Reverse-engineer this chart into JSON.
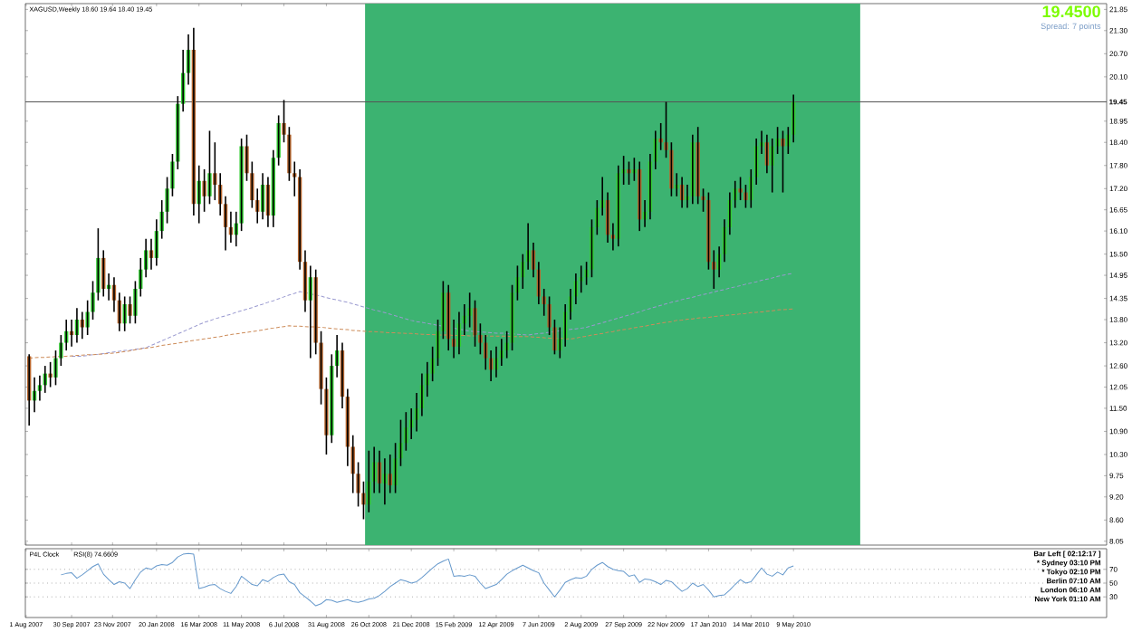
{
  "chart_data": [
    {
      "type": "candlestick",
      "title": "XAGUSD,Weekly  18.60 19.64 18.40 19.45",
      "x": [
        "2007-08-05",
        "2007-08-12",
        "2007-08-19",
        "2007-08-26",
        "2007-09-02",
        "2007-09-09",
        "2007-09-16",
        "2007-09-23",
        "2007-09-30",
        "2007-10-07",
        "2007-10-14",
        "2007-10-21",
        "2007-10-28",
        "2007-11-04",
        "2007-11-11",
        "2007-11-18",
        "2007-11-25",
        "2007-12-02",
        "2007-12-09",
        "2007-12-16",
        "2007-12-23",
        "2007-12-30",
        "2008-01-06",
        "2008-01-13",
        "2008-01-20",
        "2008-01-27",
        "2008-02-03",
        "2008-02-10",
        "2008-02-17",
        "2008-02-24",
        "2008-03-02",
        "2008-03-09",
        "2008-03-16",
        "2008-03-23",
        "2008-03-30",
        "2008-04-06",
        "2008-04-13",
        "2008-04-20",
        "2008-04-27",
        "2008-05-04",
        "2008-05-11",
        "2008-05-18",
        "2008-05-25",
        "2008-06-01",
        "2008-06-08",
        "2008-06-15",
        "2008-06-22",
        "2008-06-29",
        "2008-07-06",
        "2008-07-13",
        "2008-07-20",
        "2008-07-27",
        "2008-08-03",
        "2008-08-10",
        "2008-08-17",
        "2008-08-24",
        "2008-08-31",
        "2008-09-07",
        "2008-09-14",
        "2008-09-21",
        "2008-09-28",
        "2008-10-05",
        "2008-10-12",
        "2008-10-19",
        "2008-10-26",
        "2008-11-02",
        "2008-11-09",
        "2008-11-16",
        "2008-11-23",
        "2008-11-30",
        "2008-12-07",
        "2008-12-14",
        "2008-12-21",
        "2008-12-28",
        "2009-01-04",
        "2009-01-11",
        "2009-01-18",
        "2009-01-25",
        "2009-02-01",
        "2009-02-08",
        "2009-02-15",
        "2009-02-22",
        "2009-03-01",
        "2009-03-08",
        "2009-03-15",
        "2009-03-22",
        "2009-03-29",
        "2009-04-05",
        "2009-04-12",
        "2009-04-19",
        "2009-04-26",
        "2009-05-03",
        "2009-05-10",
        "2009-05-17",
        "2009-05-24",
        "2009-05-31",
        "2009-06-07",
        "2009-06-14",
        "2009-06-21",
        "2009-06-28",
        "2009-07-05",
        "2009-07-12",
        "2009-07-19",
        "2009-07-26",
        "2009-08-02",
        "2009-08-09",
        "2009-08-16",
        "2009-08-23",
        "2009-08-30",
        "2009-09-06",
        "2009-09-13",
        "2009-09-20",
        "2009-09-27",
        "2009-10-04",
        "2009-10-11",
        "2009-10-18",
        "2009-10-25",
        "2009-11-01",
        "2009-11-08",
        "2009-11-15",
        "2009-11-22",
        "2009-11-29",
        "2009-12-06",
        "2009-12-13",
        "2009-12-20",
        "2009-12-27",
        "2010-01-03",
        "2010-01-10",
        "2010-01-17",
        "2010-01-24",
        "2010-01-31",
        "2010-02-07",
        "2010-02-14",
        "2010-02-21",
        "2010-02-28",
        "2010-03-07",
        "2010-03-14",
        "2010-03-21",
        "2010-03-28",
        "2010-04-04",
        "2010-04-11",
        "2010-04-18",
        "2010-04-25",
        "2010-05-02",
        "2010-05-09"
      ],
      "ohlc": [
        [
          12.85,
          12.9,
          11.05,
          11.7
        ],
        [
          11.7,
          12.3,
          11.4,
          11.95
        ],
        [
          11.95,
          12.35,
          11.7,
          12.1
        ],
        [
          12.1,
          12.6,
          11.9,
          12.4
        ],
        [
          12.4,
          12.7,
          12.05,
          12.3
        ],
        [
          12.3,
          13.0,
          12.1,
          12.8
        ],
        [
          12.8,
          13.4,
          12.6,
          13.2
        ],
        [
          13.2,
          13.8,
          13.0,
          13.5
        ],
        [
          13.5,
          13.8,
          13.1,
          13.4
        ],
        [
          13.4,
          14.1,
          13.2,
          13.8
        ],
        [
          13.8,
          14.0,
          13.3,
          13.6
        ],
        [
          13.6,
          14.3,
          13.4,
          14.0
        ],
        [
          14.0,
          14.8,
          13.8,
          14.5
        ],
        [
          14.5,
          16.17,
          14.3,
          15.4
        ],
        [
          15.4,
          15.6,
          14.4,
          14.6
        ],
        [
          14.6,
          15.0,
          14.3,
          14.7
        ],
        [
          14.7,
          14.9,
          14.0,
          14.3
        ],
        [
          14.3,
          14.5,
          13.5,
          13.7
        ],
        [
          13.7,
          14.4,
          13.5,
          14.2
        ],
        [
          14.2,
          14.4,
          13.7,
          13.9
        ],
        [
          13.9,
          14.8,
          13.7,
          14.6
        ],
        [
          14.6,
          15.4,
          14.4,
          15.1
        ],
        [
          15.1,
          15.9,
          14.9,
          15.6
        ],
        [
          15.6,
          15.9,
          15.1,
          15.4
        ],
        [
          15.4,
          16.4,
          15.2,
          16.1
        ],
        [
          16.1,
          16.9,
          15.9,
          16.6
        ],
        [
          16.6,
          17.5,
          16.3,
          17.2
        ],
        [
          17.2,
          18.1,
          17.0,
          17.9
        ],
        [
          17.9,
          19.6,
          17.7,
          19.4
        ],
        [
          19.4,
          20.8,
          19.2,
          20.2
        ],
        [
          20.2,
          21.2,
          19.9,
          20.8
        ],
        [
          20.8,
          21.37,
          16.5,
          16.8
        ],
        [
          16.8,
          17.8,
          16.3,
          17.4
        ],
        [
          17.4,
          17.7,
          16.6,
          17.0
        ],
        [
          17.0,
          18.7,
          16.8,
          17.6
        ],
        [
          17.6,
          18.4,
          16.9,
          17.3
        ],
        [
          17.3,
          17.6,
          16.5,
          16.8
        ],
        [
          16.8,
          17.0,
          15.6,
          16.2
        ],
        [
          16.2,
          16.6,
          15.8,
          16.0
        ],
        [
          16.0,
          16.6,
          15.7,
          16.3
        ],
        [
          16.3,
          18.5,
          16.1,
          18.3
        ],
        [
          18.3,
          18.6,
          17.4,
          17.6
        ],
        [
          17.6,
          17.9,
          16.7,
          16.9
        ],
        [
          16.9,
          17.2,
          16.3,
          16.6
        ],
        [
          16.6,
          17.6,
          16.4,
          17.3
        ],
        [
          17.3,
          17.5,
          16.2,
          16.5
        ],
        [
          16.5,
          18.2,
          16.2,
          18.0
        ],
        [
          18.0,
          19.1,
          17.8,
          18.9
        ],
        [
          18.9,
          19.5,
          18.4,
          18.6
        ],
        [
          18.6,
          18.8,
          17.4,
          17.6
        ],
        [
          17.6,
          17.9,
          17.0,
          17.5
        ],
        [
          17.5,
          17.7,
          15.1,
          15.3
        ],
        [
          15.3,
          15.6,
          14.0,
          14.3
        ],
        [
          14.3,
          15.2,
          12.8,
          14.9
        ],
        [
          14.9,
          15.1,
          12.9,
          13.2
        ],
        [
          13.2,
          13.5,
          11.6,
          12.0
        ],
        [
          12.0,
          12.3,
          10.3,
          10.8
        ],
        [
          10.8,
          12.9,
          10.6,
          12.6
        ],
        [
          12.6,
          13.4,
          12.3,
          13.0
        ],
        [
          13.0,
          13.2,
          11.5,
          11.8
        ],
        [
          11.8,
          12.0,
          10.0,
          10.5
        ],
        [
          10.5,
          10.8,
          9.3,
          9.8
        ],
        [
          9.8,
          10.1,
          8.95,
          9.3
        ],
        [
          9.3,
          9.6,
          8.62,
          9.0
        ],
        [
          9.0,
          10.4,
          8.8,
          9.6
        ],
        [
          9.6,
          10.5,
          9.3,
          10.1
        ],
        [
          10.1,
          10.4,
          9.3,
          9.55
        ],
        [
          9.55,
          10.2,
          9.0,
          9.8
        ],
        [
          9.8,
          10.3,
          9.3,
          9.5
        ],
        [
          9.5,
          10.6,
          9.3,
          10.2
        ],
        [
          10.2,
          11.2,
          10.0,
          10.6
        ],
        [
          10.6,
          11.4,
          10.4,
          11.0
        ],
        [
          11.0,
          11.5,
          10.7,
          11.2
        ],
        [
          11.2,
          11.9,
          10.9,
          11.5
        ],
        [
          11.5,
          12.4,
          11.3,
          12.1
        ],
        [
          12.1,
          12.7,
          11.8,
          12.4
        ],
        [
          12.4,
          13.1,
          12.2,
          12.8
        ],
        [
          12.8,
          13.8,
          12.6,
          13.5
        ],
        [
          13.5,
          14.8,
          13.3,
          14.5
        ],
        [
          14.5,
          14.7,
          13.0,
          13.3
        ],
        [
          13.3,
          13.8,
          12.8,
          13.1
        ],
        [
          13.1,
          14.0,
          12.9,
          13.7
        ],
        [
          13.7,
          14.2,
          13.4,
          13.9
        ],
        [
          13.9,
          14.5,
          13.6,
          14.1
        ],
        [
          14.1,
          14.3,
          13.1,
          13.4
        ],
        [
          13.4,
          13.7,
          12.9,
          13.2
        ],
        [
          13.2,
          13.4,
          12.5,
          12.8
        ],
        [
          12.8,
          13.0,
          12.2,
          12.5
        ],
        [
          12.5,
          13.1,
          12.3,
          12.8
        ],
        [
          12.8,
          13.3,
          12.6,
          13.0
        ],
        [
          13.0,
          13.5,
          12.8,
          13.2
        ],
        [
          13.2,
          14.7,
          13.0,
          14.5
        ],
        [
          14.5,
          15.2,
          14.3,
          14.9
        ],
        [
          14.9,
          15.5,
          14.6,
          15.3
        ],
        [
          15.3,
          16.3,
          15.1,
          15.6
        ],
        [
          15.6,
          15.8,
          14.9,
          15.1
        ],
        [
          15.1,
          15.3,
          14.2,
          14.4
        ],
        [
          14.4,
          14.6,
          13.9,
          14.2
        ],
        [
          14.2,
          14.4,
          13.4,
          13.6
        ],
        [
          13.6,
          13.8,
          12.9,
          13.0
        ],
        [
          13.0,
          13.6,
          12.8,
          13.3
        ],
        [
          13.3,
          14.2,
          13.1,
          14.0
        ],
        [
          14.0,
          14.6,
          13.8,
          14.4
        ],
        [
          14.4,
          15.0,
          14.2,
          14.8
        ],
        [
          14.8,
          15.2,
          14.5,
          14.9
        ],
        [
          14.9,
          15.3,
          14.7,
          15.1
        ],
        [
          15.1,
          16.4,
          14.9,
          16.2
        ],
        [
          16.2,
          16.9,
          16.0,
          16.7
        ],
        [
          16.7,
          17.5,
          16.5,
          16.9
        ],
        [
          16.9,
          17.1,
          15.8,
          16.0
        ],
        [
          16.0,
          16.3,
          15.6,
          15.9
        ],
        [
          15.9,
          17.8,
          15.7,
          17.6
        ],
        [
          17.6,
          18.05,
          17.3,
          17.7
        ],
        [
          17.7,
          17.9,
          17.3,
          17.6
        ],
        [
          17.6,
          18.0,
          17.4,
          17.7
        ],
        [
          17.7,
          17.9,
          16.1,
          16.4
        ],
        [
          16.4,
          16.9,
          16.2,
          16.6
        ],
        [
          16.6,
          18.1,
          16.4,
          17.9
        ],
        [
          17.9,
          18.7,
          17.7,
          18.5
        ],
        [
          18.5,
          18.9,
          18.2,
          18.4
        ],
        [
          18.4,
          19.45,
          18.0,
          18.2
        ],
        [
          18.2,
          18.4,
          17.0,
          17.2
        ],
        [
          17.2,
          17.6,
          17.0,
          17.3
        ],
        [
          17.3,
          17.5,
          16.7,
          16.9
        ],
        [
          16.9,
          17.3,
          16.7,
          17.0
        ],
        [
          17.0,
          18.6,
          16.8,
          18.4
        ],
        [
          18.4,
          18.8,
          16.8,
          17.0
        ],
        [
          17.0,
          17.2,
          16.6,
          16.9
        ],
        [
          16.9,
          17.1,
          15.1,
          15.3
        ],
        [
          15.3,
          15.6,
          14.6,
          15.1
        ],
        [
          15.1,
          15.7,
          14.9,
          15.5
        ],
        [
          15.5,
          16.4,
          15.3,
          16.2
        ],
        [
          16.2,
          17.1,
          16.0,
          16.9
        ],
        [
          16.9,
          17.4,
          16.7,
          17.2
        ],
        [
          17.2,
          17.5,
          16.9,
          17.1
        ],
        [
          17.1,
          17.3,
          16.7,
          16.9
        ],
        [
          16.9,
          17.7,
          16.7,
          17.5
        ],
        [
          17.5,
          18.5,
          17.3,
          18.3
        ],
        [
          18.3,
          18.7,
          18.1,
          18.4
        ],
        [
          18.4,
          18.6,
          17.6,
          17.8
        ],
        [
          17.8,
          18.5,
          17.1,
          18.3
        ],
        [
          18.3,
          18.8,
          18.1,
          18.5
        ],
        [
          18.5,
          18.7,
          17.1,
          18.3
        ],
        [
          18.3,
          18.8,
          18.1,
          18.6
        ],
        [
          18.6,
          19.64,
          18.4,
          19.45
        ]
      ],
      "colors": [
        "#b5652d",
        "#32cd32",
        "#32cd32",
        "#32cd32",
        "#b5652d",
        "#32cd32",
        "#32cd32",
        "#32cd32",
        "#b5652d",
        "#32cd32",
        "#b5652d",
        "#32cd32",
        "#32cd32",
        "#32cd32",
        "#b5652d",
        "#32cd32",
        "#b5652d",
        "#b5652d",
        "#32cd32",
        "#b5652d",
        "#32cd32",
        "#32cd32",
        "#32cd32",
        "#b5652d",
        "#32cd32",
        "#32cd32",
        "#32cd32",
        "#32cd32",
        "#32cd32",
        "#32cd32",
        "#32cd32",
        "#b5652d",
        "#32cd32",
        "#b5652d",
        "#32cd32",
        "#b5652d",
        "#b5652d",
        "#b5652d",
        "#b5652d",
        "#32cd32",
        "#32cd32",
        "#b5652d",
        "#b5652d",
        "#b5652d",
        "#32cd32",
        "#b5652d",
        "#32cd32",
        "#32cd32",
        "#b5652d",
        "#b5652d",
        "#b5652d",
        "#b5652d",
        "#b5652d",
        "#32cd32",
        "#b5652d",
        "#b5652d",
        "#b5652d",
        "#32cd32",
        "#32cd32",
        "#b5652d",
        "#b5652d",
        "#b5652d",
        "#b5652d",
        "#b5652d",
        "#32cd32",
        "#32cd32",
        "#b5652d",
        "#32cd32",
        "#b5652d",
        "#32cd32",
        "#32cd32",
        "#32cd32",
        "#32cd32",
        "#32cd32",
        "#32cd32",
        "#32cd32",
        "#32cd32",
        "#32cd32",
        "#32cd32",
        "#b5652d",
        "#b5652d",
        "#32cd32",
        "#32cd32",
        "#32cd32",
        "#b5652d",
        "#b5652d",
        "#b5652d",
        "#b5652d",
        "#32cd32",
        "#32cd32",
        "#32cd32",
        "#32cd32",
        "#32cd32",
        "#32cd32",
        "#32cd32",
        "#b5652d",
        "#b5652d",
        "#b5652d",
        "#b5652d",
        "#b5652d",
        "#32cd32",
        "#32cd32",
        "#32cd32",
        "#32cd32",
        "#32cd32",
        "#32cd32",
        "#32cd32",
        "#32cd32",
        "#32cd32",
        "#b5652d",
        "#b5652d",
        "#32cd32",
        "#32cd32",
        "#b5652d",
        "#32cd32",
        "#b5652d",
        "#32cd32",
        "#32cd32",
        "#32cd32",
        "#b5652d",
        "#b5652d",
        "#b5652d",
        "#32cd32",
        "#b5652d",
        "#32cd32",
        "#32cd32",
        "#b5652d",
        "#b5652d",
        "#b5652d",
        "#b5652d",
        "#32cd32",
        "#32cd32",
        "#32cd32",
        "#32cd32",
        "#b5652d",
        "#b5652d",
        "#32cd32",
        "#32cd32",
        "#32cd32",
        "#b5652d",
        "#32cd32",
        "#32cd32",
        "#b5652d",
        "#32cd32",
        "#32cd32"
      ],
      "series": [
        {
          "type": "line",
          "color": "#9a9ad0",
          "line_style": "dashed",
          "values": [
            null,
            null,
            null,
            null,
            null,
            null,
            null,
            null,
            12.85,
            12.85,
            12.85,
            12.87,
            12.89,
            12.9,
            12.92,
            12.94,
            12.96,
            12.98,
            13.0,
            13.01,
            13.03,
            13.05,
            13.07,
            13.13,
            13.19,
            13.25,
            13.31,
            13.37,
            13.43,
            13.49,
            13.55,
            13.61,
            13.67,
            13.73,
            13.77,
            13.82,
            13.86,
            13.9,
            13.94,
            13.99,
            14.03,
            14.07,
            14.11,
            14.16,
            14.2,
            14.25,
            14.29,
            14.34,
            14.39,
            14.44,
            14.48,
            14.53,
            14.5,
            14.47,
            14.44,
            14.41,
            14.37,
            14.34,
            14.31,
            14.28,
            14.25,
            14.21,
            14.17,
            14.13,
            14.09,
            14.05,
            14.02,
            13.98,
            13.94,
            13.9,
            13.86,
            13.82,
            13.78,
            13.75,
            13.73,
            13.7,
            13.68,
            13.65,
            13.63,
            null,
            13.58,
            13.55,
            13.53,
            13.5,
            13.49,
            13.48,
            13.47,
            13.46,
            13.45,
            13.45,
            13.44,
            13.43,
            13.42,
            13.41,
            13.4,
            13.42,
            13.44,
            13.45,
            13.47,
            13.49,
            13.51,
            13.53,
            13.55,
            13.56,
            13.58,
            13.6,
            13.64,
            13.68,
            13.72,
            13.76,
            13.8,
            13.84,
            13.88,
            13.92,
            13.96,
            14.0,
            14.05,
            14.09,
            14.13,
            14.17,
            14.21,
            14.25,
            14.28,
            14.32,
            14.35,
            14.38,
            14.42,
            14.45,
            14.48,
            14.52,
            14.55,
            14.58,
            14.62,
            14.65,
            14.68,
            14.72,
            14.75,
            14.78,
            14.82,
            14.85,
            14.88,
            14.92,
            14.95,
            14.98,
            15.0
          ]
        },
        {
          "type": "line",
          "color": "#cd8c5a",
          "line_style": "dashed",
          "values": [
            12.8,
            12.81,
            12.82,
            12.82,
            12.83,
            12.84,
            12.85,
            12.85,
            12.86,
            12.87,
            12.88,
            12.89,
            12.89,
            12.9,
            12.91,
            12.92,
            12.93,
            12.95,
            12.97,
            12.99,
            13.02,
            13.04,
            13.06,
            13.08,
            13.1,
            13.13,
            13.15,
            13.17,
            13.19,
            13.21,
            13.24,
            13.26,
            13.28,
            13.3,
            13.32,
            13.34,
            13.36,
            13.39,
            13.41,
            13.43,
            13.45,
            13.47,
            13.49,
            13.51,
            13.53,
            13.56,
            13.58,
            13.6,
            13.62,
            13.64,
            13.63,
            13.63,
            13.62,
            13.61,
            13.61,
            13.6,
            13.59,
            13.57,
            13.56,
            13.55,
            13.54,
            13.52,
            13.51,
            13.5,
            13.49,
            13.49,
            13.48,
            13.47,
            13.46,
            13.46,
            13.45,
            13.44,
            13.44,
            13.43,
            13.42,
            13.41,
            13.41,
            13.4,
            13.4,
            13.4,
            13.39,
            13.39,
            13.39,
            13.38,
            13.38,
            13.38,
            13.38,
            13.37,
            13.37,
            13.37,
            13.37,
            13.36,
            13.36,
            13.36,
            13.36,
            13.35,
            13.34,
            13.33,
            13.32,
            13.32,
            13.31,
            13.3,
            13.3,
            13.32,
            13.35,
            13.37,
            13.4,
            13.42,
            13.44,
            13.47,
            13.49,
            13.52,
            13.54,
            13.56,
            13.59,
            13.61,
            13.63,
            13.66,
            13.68,
            13.71,
            13.73,
            13.75,
            13.78,
            13.79,
            13.81,
            13.82,
            13.84,
            13.85,
            13.86,
            13.88,
            13.89,
            13.91,
            13.92,
            13.93,
            13.95,
            13.96,
            13.98,
            13.99,
            14.0,
            14.02,
            14.03,
            14.05,
            14.06,
            14.07,
            14.08
          ]
        }
      ],
      "xlim": [
        "2007-07-31",
        "2011-06-26"
      ],
      "ylim": [
        7.95,
        22.0
      ],
      "xticks": [
        {
          "value": "2007-08-01",
          "label": null
        },
        {
          "value": "2007-09-30",
          "label": null
        },
        {
          "value": "2007-11-23",
          "label": null
        },
        {
          "value": "2008-01-20",
          "label": null
        },
        {
          "value": "2008-03-16",
          "label": null
        },
        {
          "value": "2008-05-11",
          "label": null
        },
        {
          "value": "2008-07-06",
          "label": null
        },
        {
          "value": "2008-08-31",
          "label": null
        },
        {
          "value": "2008-10-26",
          "label": null
        },
        {
          "value": "2008-12-21",
          "label": null
        },
        {
          "value": "2009-02-15",
          "label": null
        },
        {
          "value": "2009-04-12",
          "label": null
        },
        {
          "value": "2009-06-07",
          "label": null
        },
        {
          "value": "2009-08-02",
          "label": null
        },
        {
          "value": "2009-09-27",
          "label": null
        },
        {
          "value": "2009-11-22",
          "label": null
        },
        {
          "value": "2010-01-17",
          "label": null
        },
        {
          "value": "2010-03-14",
          "label": null
        },
        {
          "value": "2010-05-09",
          "label": null
        }
      ],
      "yticks": [
        {
          "value": 8.05,
          "label": "8.05"
        },
        {
          "value": 8.6,
          "label": "8.60"
        },
        {
          "value": 9.2,
          "label": "9.20"
        },
        {
          "value": 9.75,
          "label": "9.75"
        },
        {
          "value": 10.3,
          "label": "10.30"
        },
        {
          "value": 10.9,
          "label": "10.90"
        },
        {
          "value": 11.5,
          "label": "11.50"
        },
        {
          "value": 12.05,
          "label": "12.05"
        },
        {
          "value": 12.6,
          "label": "12.60"
        },
        {
          "value": 13.2,
          "label": "13.20"
        },
        {
          "value": 13.8,
          "label": "13.80"
        },
        {
          "value": 14.35,
          "label": "14.35"
        },
        {
          "value": 14.95,
          "label": "14.95"
        },
        {
          "value": 15.5,
          "label": "15.50"
        },
        {
          "value": 16.1,
          "label": "16.10"
        },
        {
          "value": 16.65,
          "label": "16.65"
        },
        {
          "value": 17.2,
          "label": "17.20"
        },
        {
          "value": 17.8,
          "label": "17.80"
        },
        {
          "value": 18.4,
          "label": "18.40"
        },
        {
          "value": 18.95,
          "label": "18.95"
        },
        {
          "value": 20.1,
          "label": "20.10"
        },
        {
          "value": 20.7,
          "label": "20.70"
        },
        {
          "value": 21.3,
          "label": "21.30"
        },
        {
          "value": 21.85,
          "label": "21.85"
        }
      ],
      "tick_labels": "y",
      "ref_lines": [
        {
          "axis": "y",
          "value": 19.45,
          "label": "19.45",
          "color": "#555555"
        }
      ],
      "bands": [
        {
          "axis": "x",
          "from": "2008-10-21",
          "to": "2010-08-05",
          "color": "#3cb371"
        }
      ],
      "annotations": [
        "19.4500",
        "Spread: 7 points"
      ]
    },
    {
      "type": "line",
      "title": "P4L Clock",
      "subtitle": "RSI(8) 74.6609",
      "series": [
        {
          "color": "#6699cc",
          "x": [
            "2007-09-16",
            "2007-09-23",
            "2007-09-30",
            "2007-10-07",
            "2007-10-14",
            "2007-10-21",
            "2007-10-28",
            "2007-11-04",
            "2007-11-11",
            "2007-11-18",
            "2007-11-25",
            "2007-12-02",
            "2007-12-09",
            "2007-12-16",
            "2007-12-23",
            "2007-12-30",
            "2008-01-06",
            "2008-01-13",
            "2008-01-20",
            "2008-01-27",
            "2008-02-03",
            "2008-02-10",
            "2008-02-17",
            "2008-02-24",
            "2008-03-02",
            "2008-03-09",
            "2008-03-16",
            "2008-03-23",
            "2008-03-30",
            "2008-04-06",
            "2008-04-13",
            "2008-04-20",
            "2008-04-27",
            "2008-05-04",
            "2008-05-11",
            "2008-05-18",
            "2008-05-25",
            "2008-06-01",
            "2008-06-08",
            "2008-06-15",
            "2008-06-22",
            "2008-06-29",
            "2008-07-06",
            "2008-07-13",
            "2008-07-20",
            "2008-07-27",
            "2008-08-03",
            "2008-08-10",
            "2008-08-17",
            "2008-08-24",
            "2008-08-31",
            "2008-09-07",
            "2008-09-14",
            "2008-09-21",
            "2008-09-28",
            "2008-10-05",
            "2008-10-12",
            "2008-10-19",
            "2008-10-26",
            "2008-11-02",
            "2008-11-09",
            "2008-11-16",
            "2008-11-23",
            "2008-11-30",
            "2008-12-07",
            "2008-12-14",
            "2008-12-21",
            "2008-12-28",
            "2009-01-04",
            "2009-01-11",
            "2009-01-18",
            "2009-01-25",
            "2009-02-01",
            "2009-02-08",
            "2009-02-15",
            "2009-02-22",
            "2009-03-01",
            "2009-03-08",
            "2009-03-15",
            "2009-03-22",
            "2009-03-29",
            "2009-04-05",
            "2009-04-12",
            "2009-04-19",
            "2009-04-26",
            "2009-05-03",
            "2009-05-10",
            "2009-05-17",
            "2009-05-24",
            "2009-05-31",
            "2009-06-07",
            "2009-06-14",
            "2009-06-21",
            "2009-06-28",
            "2009-07-05",
            "2009-07-12",
            "2009-07-19",
            "2009-07-26",
            "2009-08-02",
            "2009-08-09",
            "2009-08-16",
            "2009-08-23",
            "2009-08-30",
            "2009-09-06",
            "2009-09-13",
            "2009-09-20",
            "2009-09-27",
            "2009-10-04",
            "2009-10-11",
            "2009-10-18",
            "2009-10-25",
            "2009-11-01",
            "2009-11-08",
            "2009-11-15",
            "2009-11-22",
            "2009-11-29",
            "2009-12-06",
            "2009-12-13",
            "2009-12-20",
            "2009-12-27",
            "2010-01-03",
            "2010-01-10",
            "2010-01-17",
            "2010-01-24",
            "2010-01-31",
            "2010-02-07",
            "2010-02-14",
            "2010-02-21",
            "2010-02-28",
            "2010-03-07",
            "2010-03-14",
            "2010-03-21",
            "2010-03-28",
            "2010-04-04",
            "2010-04-11",
            "2010-04-18",
            "2010-04-25",
            "2010-05-02",
            "2010-05-09"
          ],
          "values": [
            62,
            64,
            65,
            57,
            62,
            68,
            74,
            78,
            63,
            55,
            48,
            52,
            50,
            42,
            55,
            66,
            72,
            70,
            75,
            77,
            76,
            80,
            88,
            92,
            93,
            92,
            42,
            44,
            47,
            48,
            42,
            38,
            35,
            45,
            60,
            54,
            48,
            46,
            55,
            52,
            58,
            62,
            63,
            52,
            48,
            36,
            30,
            24,
            17,
            20,
            26,
            25,
            22,
            24,
            26,
            23,
            22,
            24,
            27,
            28,
            32,
            38,
            45,
            50,
            55,
            53,
            50,
            52,
            58,
            65,
            72,
            78,
            82,
            85,
            60,
            61,
            60,
            62,
            60,
            50,
            42,
            45,
            48,
            55,
            63,
            68,
            72,
            76,
            72,
            68,
            65,
            50,
            40,
            30,
            40,
            51,
            55,
            58,
            57,
            60,
            70,
            76,
            80,
            74,
            70,
            68,
            67,
            60,
            62,
            51,
            56,
            55,
            52,
            48,
            54,
            52,
            45,
            38,
            42,
            50,
            45,
            48,
            40,
            30,
            32,
            33,
            40,
            48,
            55,
            50,
            52,
            62,
            72,
            63,
            60,
            66,
            62,
            72,
            75
          ]
        }
      ],
      "xlim": [
        "2007-07-31",
        "2011-06-26"
      ],
      "ylim": [
        0,
        100
      ],
      "xticks": [
        {
          "value": "2007-08-01",
          "label": "1 Aug 2007"
        },
        {
          "value": "2007-09-30",
          "label": "30 Sep 2007"
        },
        {
          "value": "2007-11-23",
          "label": "23 Nov 2007"
        },
        {
          "value": "2008-01-20",
          "label": "20 Jan 2008"
        },
        {
          "value": "2008-03-16",
          "label": "16 Mar 2008"
        },
        {
          "value": "2008-05-11",
          "label": "11 May 2008"
        },
        {
          "value": "2008-07-06",
          "label": "6 Jul 2008"
        },
        {
          "value": "2008-08-31",
          "label": "31 Aug 2008"
        },
        {
          "value": "2008-10-26",
          "label": "26 Oct 2008"
        },
        {
          "value": "2008-12-21",
          "label": "21 Dec 2008"
        },
        {
          "value": "2009-02-15",
          "label": "15 Feb 2009"
        },
        {
          "value": "2009-04-12",
          "label": "12 Apr 2009"
        },
        {
          "value": "2009-06-07",
          "label": "7 Jun 2009"
        },
        {
          "value": "2009-08-02",
          "label": "2 Aug 2009"
        },
        {
          "value": "2009-09-27",
          "label": "27 Sep 2009"
        },
        {
          "value": "2009-11-22",
          "label": "22 Nov 2009"
        },
        {
          "value": "2010-01-17",
          "label": "17 Jan 2010"
        },
        {
          "value": "2010-03-14",
          "label": "14 Mar 2010"
        },
        {
          "value": "2010-05-09",
          "label": "9 May 2010"
        }
      ],
      "yticks": [
        30,
        50,
        70
      ],
      "grid": "y",
      "annotations": [
        "Bar Left [ 02:12:17 ]",
        "* Sydney  03:10 PM",
        "* Tokyo  02:10 PM",
        "Berlin  07:10 AM",
        "London  06:10 AM",
        "New York  01:10 AM"
      ]
    }
  ]
}
